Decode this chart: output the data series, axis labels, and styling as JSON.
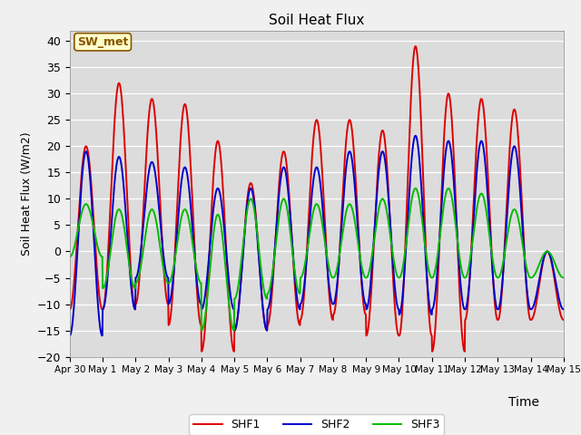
{
  "title": "Soil Heat Flux",
  "xlabel": "Time",
  "ylabel": "Soil Heat Flux (W/m2)",
  "ylim": [
    -20,
    42
  ],
  "yticks": [
    -20,
    -15,
    -10,
    -5,
    0,
    5,
    10,
    15,
    20,
    25,
    30,
    35,
    40
  ],
  "bg_color": "#dcdcdc",
  "fig_color": "#f0f0f0",
  "line_colors": {
    "SHF1": "#dd0000",
    "SHF2": "#0000cc",
    "SHF3": "#00bb00"
  },
  "line_widths": {
    "SHF1": 1.4,
    "SHF2": 1.4,
    "SHF3": 1.4
  },
  "annotation_text": "SW_met",
  "annotation_bg": "#ffffcc",
  "annotation_border": "#885500",
  "x_tick_labels": [
    "Apr 30",
    "May 1",
    "May 2",
    "May 3",
    "May 4",
    "May 5",
    "May 6",
    "May 7",
    "May 8",
    "May 9",
    "May 10",
    "May 11",
    "May 12",
    "May 13",
    "May 14",
    "May 15"
  ],
  "num_days": 15,
  "points_per_day": 96
}
